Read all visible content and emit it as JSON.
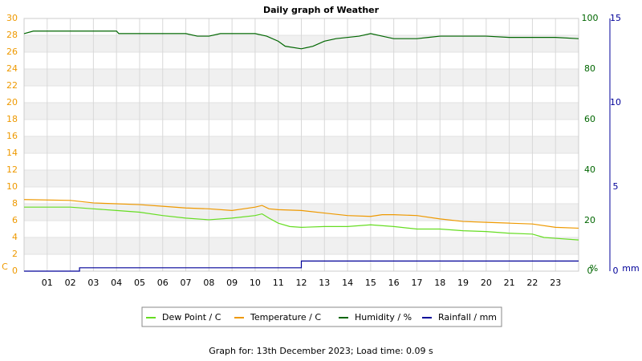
{
  "chart_data": {
    "type": "line",
    "title": "Daily graph of Weather",
    "footer": "Graph for: 13th December 2023; Load time: 0.09 s",
    "y_label": "C",
    "y2_label": "%",
    "y3_label": "mm",
    "xlim": [
      0,
      24
    ],
    "xticks": [
      {
        "value": 1,
        "label": "01"
      },
      {
        "value": 2,
        "label": "02"
      },
      {
        "value": 3,
        "label": "03"
      },
      {
        "value": 4,
        "label": "04"
      },
      {
        "value": 5,
        "label": "05"
      },
      {
        "value": 6,
        "label": "06"
      },
      {
        "value": 7,
        "label": "07"
      },
      {
        "value": 8,
        "label": "08"
      },
      {
        "value": 9,
        "label": "09"
      },
      {
        "value": 10,
        "label": "10"
      },
      {
        "value": 11,
        "label": "11"
      },
      {
        "value": 12,
        "label": "12"
      },
      {
        "value": 13,
        "label": "13"
      },
      {
        "value": 14,
        "label": "14"
      },
      {
        "value": 15,
        "label": "15"
      },
      {
        "value": 16,
        "label": "16"
      },
      {
        "value": 17,
        "label": "17"
      },
      {
        "value": 18,
        "label": "18"
      },
      {
        "value": 19,
        "label": "19"
      },
      {
        "value": 20,
        "label": "20"
      },
      {
        "value": 21,
        "label": "21"
      },
      {
        "value": 22,
        "label": "22"
      },
      {
        "value": 23,
        "label": "23"
      }
    ],
    "ylim": [
      0,
      30
    ],
    "yticks": [
      0,
      2,
      4,
      6,
      8,
      10,
      12,
      14,
      16,
      18,
      20,
      22,
      24,
      26,
      28,
      30
    ],
    "y2lim": [
      0,
      100
    ],
    "y2ticks": [
      0,
      20,
      40,
      60,
      80,
      100
    ],
    "y3lim": [
      0,
      15
    ],
    "y3ticks": [
      0,
      5,
      10,
      15
    ],
    "series": [
      {
        "name": "Dew Point / C",
        "color": "#66dd22",
        "axis": "y",
        "x": [
          0,
          2,
          3,
          4,
          5,
          6,
          7,
          8,
          9,
          10,
          10.3,
          10.6,
          11,
          11.5,
          12,
          13,
          14,
          15,
          16,
          17,
          18,
          19,
          20,
          21,
          22,
          22.5,
          23,
          24
        ],
        "values": [
          7.6,
          7.6,
          7.4,
          7.2,
          7.0,
          6.6,
          6.3,
          6.1,
          6.3,
          6.6,
          6.8,
          6.3,
          5.7,
          5.3,
          5.2,
          5.3,
          5.3,
          5.5,
          5.3,
          5.0,
          5.0,
          4.8,
          4.7,
          4.5,
          4.4,
          4.0,
          3.9,
          3.7
        ]
      },
      {
        "name": "Temperature / C",
        "color": "#ee9900",
        "axis": "y",
        "x": [
          0,
          2,
          3,
          4,
          5,
          6,
          7,
          8,
          9,
          9.5,
          10,
          10.3,
          10.6,
          11,
          12,
          13,
          14,
          15,
          15.5,
          16,
          17,
          18,
          19,
          20,
          21,
          22,
          23,
          24
        ],
        "values": [
          8.5,
          8.4,
          8.1,
          8.0,
          7.9,
          7.7,
          7.5,
          7.4,
          7.2,
          7.4,
          7.6,
          7.8,
          7.4,
          7.3,
          7.2,
          6.9,
          6.6,
          6.5,
          6.7,
          6.7,
          6.6,
          6.2,
          5.9,
          5.8,
          5.7,
          5.6,
          5.2,
          5.1
        ]
      },
      {
        "name": "Humidity / %",
        "color": "#006600",
        "axis": "y2",
        "x": [
          0,
          0.4,
          4,
          4.1,
          7,
          7.5,
          8,
          8.5,
          10,
          10.5,
          11,
          11.3,
          12,
          12.5,
          13,
          13.5,
          14.5,
          15,
          15.5,
          16,
          17,
          17.5,
          18,
          19,
          20,
          21,
          22,
          23,
          24
        ],
        "values": [
          94,
          95,
          95,
          94,
          94,
          93,
          93,
          94,
          94,
          93,
          91,
          89,
          88,
          89,
          91,
          92,
          93,
          94,
          93,
          92,
          92,
          92.5,
          93,
          93,
          93,
          92.5,
          92.5,
          92.5,
          92
        ]
      },
      {
        "name": "Rainfall / mm",
        "color": "#000099",
        "axis": "y3",
        "x": [
          0,
          2.4,
          2.4,
          12,
          12,
          24
        ],
        "values": [
          0,
          0,
          0.2,
          0.2,
          0.6,
          0.6
        ]
      }
    ]
  }
}
